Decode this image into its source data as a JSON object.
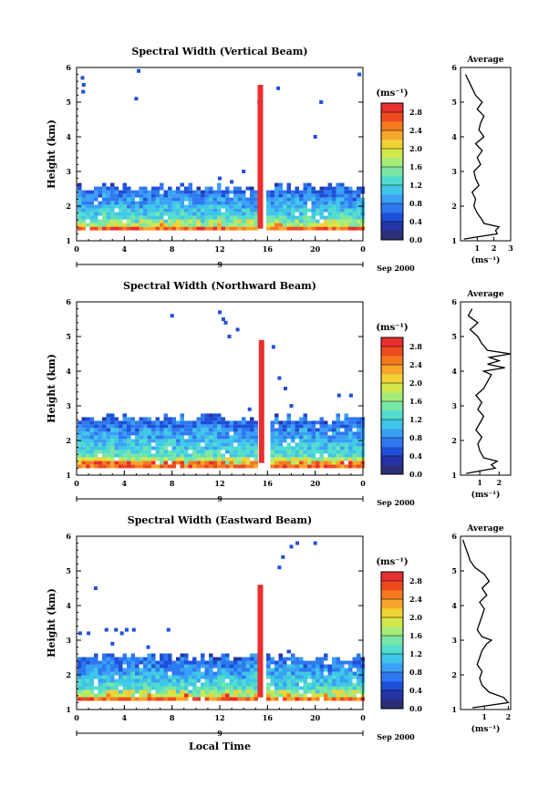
{
  "chart_data": [
    {
      "type": "heatmap",
      "title": "Spectral Width (Vertical Beam)",
      "xlabel": "",
      "ylabel": "Height (km)",
      "xlim": [
        0,
        24
      ],
      "ylim": [
        1,
        6
      ],
      "x_ticks": [
        "0",
        "4",
        "8",
        "12",
        "16",
        "20",
        "0"
      ],
      "y_ticks": [
        "1",
        "2",
        "3",
        "4",
        "5",
        "6"
      ],
      "date_label": "9",
      "date_suffix": "Sep 2000",
      "colorbar": {
        "unit_label": "(ms⁻¹)",
        "tick_labels": [
          "0.0",
          "0.4",
          "0.8",
          "1.2",
          "1.6",
          "2.0",
          "2.4",
          "2.8"
        ],
        "range": [
          0,
          3.0
        ]
      },
      "layer": {
        "top_km": 2.5,
        "base_km": 1.4
      },
      "spike": {
        "x_hour": 15.4,
        "top_km": 5.5,
        "value": 3.0
      },
      "isolated_points": [
        [
          0.5,
          5.7
        ],
        [
          0.6,
          5.5
        ],
        [
          0.55,
          5.3
        ],
        [
          5.2,
          5.9
        ],
        [
          5.0,
          5.1
        ],
        [
          15.3,
          5.0
        ],
        [
          16.9,
          5.4
        ],
        [
          20.5,
          5.0
        ],
        [
          23.7,
          5.8
        ],
        [
          20.0,
          4.0
        ],
        [
          14.0,
          3.0
        ],
        [
          12.0,
          2.8
        ],
        [
          13.0,
          2.7
        ]
      ],
      "average_profile": {
        "title": "Average",
        "xlabel": "(ms⁻¹)",
        "x_ticks": [
          "1",
          "2",
          "3"
        ],
        "xlim": [
          0,
          3
        ],
        "ylim": [
          1,
          6
        ],
        "height_km": [
          1.05,
          1.2,
          1.3,
          1.4,
          1.5,
          1.6,
          1.8,
          2.0,
          2.2,
          2.4,
          2.6,
          2.8,
          3.0,
          3.2,
          3.4,
          3.6,
          3.8,
          4.0,
          4.2,
          4.4,
          4.6,
          4.8,
          5.0,
          5.2,
          5.4,
          5.6,
          5.8
        ],
        "width": [
          0.2,
          2.2,
          2.1,
          2.3,
          1.4,
          1.3,
          1.0,
          0.8,
          0.9,
          0.7,
          1.1,
          0.9,
          0.8,
          1.2,
          1.0,
          1.3,
          0.9,
          1.4,
          1.1,
          1.2,
          1.4,
          1.0,
          1.3,
          0.9,
          0.7,
          0.5,
          0.3
        ]
      }
    },
    {
      "type": "heatmap",
      "title": "Spectral Width (Northward Beam)",
      "xlabel": "",
      "ylabel": "Height (km)",
      "xlim": [
        0,
        24
      ],
      "ylim": [
        1,
        6
      ],
      "x_ticks": [
        "0",
        "4",
        "8",
        "12",
        "16",
        "20",
        "0"
      ],
      "y_ticks": [
        "1",
        "2",
        "3",
        "4",
        "5",
        "6"
      ],
      "date_label": "9",
      "date_suffix": "Sep 2000",
      "colorbar": {
        "unit_label": "(ms⁻¹)",
        "tick_labels": [
          "0.0",
          "0.4",
          "0.8",
          "1.2",
          "1.6",
          "2.0",
          "2.4",
          "2.8"
        ],
        "range": [
          0,
          3.0
        ]
      },
      "layer": {
        "top_km": 2.6,
        "base_km": 1.3
      },
      "spike": {
        "x_hour": 15.5,
        "top_km": 4.9,
        "value": 3.0
      },
      "isolated_points": [
        [
          8.0,
          5.6
        ],
        [
          12.0,
          5.7
        ],
        [
          12.3,
          5.5
        ],
        [
          12.5,
          5.4
        ],
        [
          13.5,
          5.2
        ],
        [
          12.8,
          5.0
        ],
        [
          16.5,
          4.7
        ],
        [
          17.0,
          3.8
        ],
        [
          17.5,
          3.5
        ],
        [
          22.0,
          3.3
        ],
        [
          23.0,
          3.3
        ],
        [
          18.0,
          3.0
        ],
        [
          14.5,
          2.9
        ]
      ],
      "average_profile": {
        "title": "Average",
        "xlabel": "(ms⁻¹)",
        "x_ticks": [
          "1",
          "2"
        ],
        "xlim": [
          0,
          2.6
        ],
        "ylim": [
          1,
          6
        ],
        "height_km": [
          1.05,
          1.2,
          1.3,
          1.4,
          1.5,
          1.7,
          1.9,
          2.1,
          2.3,
          2.5,
          2.7,
          2.9,
          3.1,
          3.3,
          3.5,
          3.7,
          3.9,
          4.0,
          4.1,
          4.2,
          4.3,
          4.4,
          4.5,
          4.6,
          4.8,
          5.0,
          5.2,
          5.4,
          5.6,
          5.8
        ],
        "width": [
          0.3,
          1.8,
          1.6,
          1.9,
          1.2,
          1.0,
          0.9,
          1.1,
          0.8,
          1.0,
          1.2,
          0.9,
          1.1,
          0.8,
          1.2,
          1.4,
          1.6,
          1.2,
          2.3,
          1.4,
          2.0,
          1.5,
          2.6,
          1.4,
          1.1,
          0.9,
          0.5,
          0.9,
          0.4,
          0.6
        ]
      }
    },
    {
      "type": "heatmap",
      "title": "Spectral Width (Eastward Beam)",
      "xlabel": "Local Time",
      "ylabel": "Height (km)",
      "xlim": [
        0,
        24
      ],
      "ylim": [
        1,
        6
      ],
      "x_ticks": [
        "0",
        "4",
        "8",
        "12",
        "16",
        "20",
        "0"
      ],
      "y_ticks": [
        "1",
        "2",
        "3",
        "4",
        "5",
        "6"
      ],
      "date_label": "9",
      "date_suffix": "Sep 2000",
      "colorbar": {
        "unit_label": "(ms⁻¹)",
        "tick_labels": [
          "0.0",
          "0.4",
          "0.8",
          "1.2",
          "1.6",
          "2.0",
          "2.4",
          "2.8"
        ],
        "range": [
          0,
          3.0
        ]
      },
      "layer": {
        "top_km": 2.5,
        "base_km": 1.35
      },
      "spike": {
        "x_hour": 15.4,
        "top_km": 4.6,
        "value": 3.0
      },
      "isolated_points": [
        [
          0.3,
          3.2
        ],
        [
          1.0,
          3.2
        ],
        [
          1.6,
          4.5
        ],
        [
          2.5,
          3.3
        ],
        [
          3.3,
          3.3
        ],
        [
          3.8,
          3.2
        ],
        [
          4.2,
          3.3
        ],
        [
          4.8,
          3.3
        ],
        [
          7.7,
          3.3
        ],
        [
          17.0,
          5.1
        ],
        [
          17.3,
          5.4
        ],
        [
          18.0,
          5.7
        ],
        [
          18.5,
          5.8
        ],
        [
          20.0,
          5.8
        ],
        [
          3.0,
          2.9
        ],
        [
          6.0,
          2.8
        ]
      ],
      "average_profile": {
        "title": "Average",
        "xlabel": "(ms⁻¹)",
        "x_ticks": [
          "1",
          "2"
        ],
        "xlim": [
          0,
          2.1
        ],
        "ylim": [
          1,
          6
        ],
        "height_km": [
          1.05,
          1.2,
          1.35,
          1.5,
          1.7,
          1.9,
          2.1,
          2.3,
          2.5,
          2.7,
          2.9,
          3.0,
          3.1,
          3.3,
          3.5,
          3.7,
          3.9,
          4.1,
          4.3,
          4.5,
          4.7,
          4.9,
          5.1,
          5.3,
          5.5,
          5.7,
          5.9
        ],
        "width": [
          0.5,
          2.0,
          1.8,
          1.2,
          0.9,
          0.8,
          0.9,
          0.7,
          0.8,
          0.9,
          1.1,
          1.3,
          0.9,
          0.7,
          0.8,
          0.9,
          1.0,
          0.8,
          1.1,
          0.9,
          1.2,
          1.0,
          0.6,
          0.4,
          0.3,
          0.2,
          0.1
        ]
      }
    }
  ]
}
